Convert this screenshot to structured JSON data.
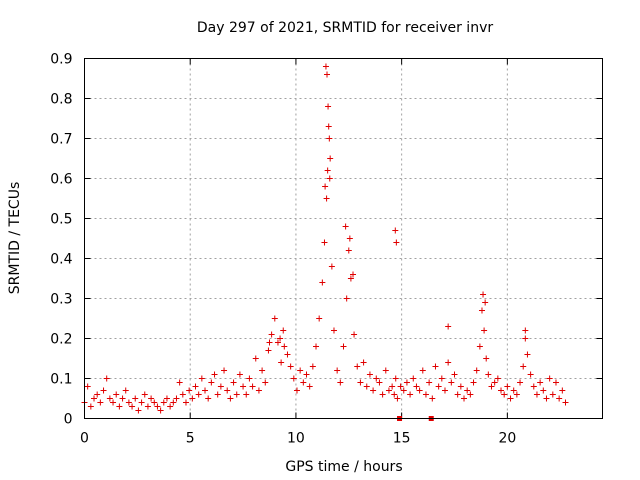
{
  "chart_data": {
    "type": "scatter",
    "title": "Day 297 of 2021, SRMTID for receiver invr",
    "xlabel": "GPS time / hours",
    "ylabel": "SRMTID / TECUs",
    "xlim": [
      0,
      24.5
    ],
    "ylim": [
      0,
      0.9
    ],
    "xticks": [
      0,
      5,
      10,
      15,
      20
    ],
    "xtick_labels": [
      "0",
      "5",
      "10",
      "15",
      "20"
    ],
    "yticks": [
      0,
      0.1,
      0.2,
      0.3,
      0.4,
      0.5,
      0.6,
      0.7,
      0.8,
      0.9
    ],
    "ytick_labels": [
      "0",
      "0.1",
      "0.2",
      "0.3",
      "0.4",
      "0.5",
      "0.6",
      "0.7",
      "0.8",
      "0.9"
    ],
    "grid": true,
    "marker": "plus",
    "color": "#e00000",
    "series": [
      {
        "name": "SRMTID",
        "x": [
          0.0,
          0.15,
          0.3,
          0.45,
          0.6,
          0.75,
          0.9,
          1.05,
          1.2,
          1.35,
          1.5,
          1.65,
          1.8,
          1.95,
          2.1,
          2.25,
          2.4,
          2.55,
          2.7,
          2.85,
          3.0,
          3.15,
          3.3,
          3.45,
          3.6,
          3.75,
          3.9,
          4.05,
          4.2,
          4.35,
          4.5,
          4.65,
          4.8,
          4.95,
          5.1,
          5.25,
          5.4,
          5.55,
          5.7,
          5.85,
          6.0,
          6.15,
          6.3,
          6.45,
          6.6,
          6.75,
          6.9,
          7.05,
          7.2,
          7.35,
          7.5,
          7.65,
          7.8,
          7.95,
          8.1,
          8.25,
          8.4,
          8.55,
          8.7,
          8.85,
          9.0,
          9.15,
          9.3,
          9.45,
          9.6,
          9.75,
          9.9,
          10.05,
          10.2,
          10.35,
          10.5,
          10.65,
          10.8,
          10.95,
          11.1,
          11.25,
          11.35,
          11.45,
          11.5,
          11.55,
          11.6,
          11.7,
          11.8,
          11.95,
          12.1,
          12.25,
          12.4,
          12.5,
          12.6,
          12.75,
          12.9,
          13.05,
          13.2,
          13.35,
          13.5,
          13.65,
          13.8,
          13.95,
          14.1,
          14.25,
          14.4,
          14.55,
          14.65,
          14.72,
          14.8,
          14.95,
          15.1,
          15.25,
          15.4,
          15.55,
          15.7,
          15.85,
          16.0,
          16.15,
          16.3,
          16.45,
          16.6,
          16.75,
          16.9,
          17.05,
          17.2,
          17.35,
          17.5,
          17.65,
          17.8,
          17.95,
          18.1,
          18.25,
          18.4,
          18.55,
          18.7,
          18.8,
          18.9,
          19.0,
          19.1,
          19.25,
          19.4,
          19.55,
          19.7,
          19.85,
          20.0,
          20.15,
          20.3,
          20.45,
          20.6,
          20.75,
          20.85,
          20.95,
          21.1,
          21.25,
          21.4,
          21.55,
          21.7,
          21.85,
          22.0,
          22.15,
          22.3,
          22.45,
          22.6,
          22.75,
          11.42,
          11.47,
          11.52,
          11.58,
          11.62,
          11.38,
          12.35,
          12.55,
          12.7,
          14.7,
          14.75,
          18.85,
          18.95,
          9.4,
          9.25,
          17.2,
          20.85,
          8.75,
          14.9,
          16.4
        ],
        "y": [
          0.04,
          0.08,
          0.03,
          0.05,
          0.06,
          0.04,
          0.07,
          0.1,
          0.05,
          0.04,
          0.06,
          0.03,
          0.05,
          0.07,
          0.04,
          0.03,
          0.05,
          0.02,
          0.04,
          0.06,
          0.03,
          0.05,
          0.04,
          0.03,
          0.02,
          0.04,
          0.05,
          0.03,
          0.04,
          0.05,
          0.09,
          0.06,
          0.04,
          0.07,
          0.05,
          0.08,
          0.06,
          0.1,
          0.07,
          0.05,
          0.09,
          0.11,
          0.06,
          0.08,
          0.12,
          0.07,
          0.05,
          0.09,
          0.06,
          0.11,
          0.08,
          0.06,
          0.1,
          0.08,
          0.15,
          0.07,
          0.12,
          0.09,
          0.17,
          0.21,
          0.25,
          0.19,
          0.14,
          0.18,
          0.16,
          0.13,
          0.1,
          0.07,
          0.12,
          0.09,
          0.11,
          0.08,
          0.13,
          0.18,
          0.25,
          0.34,
          0.44,
          0.55,
          0.62,
          0.73,
          0.6,
          0.38,
          0.22,
          0.12,
          0.09,
          0.18,
          0.3,
          0.42,
          0.35,
          0.21,
          0.13,
          0.09,
          0.14,
          0.08,
          0.11,
          0.07,
          0.1,
          0.09,
          0.06,
          0.12,
          0.07,
          0.08,
          0.06,
          0.1,
          0.05,
          0.08,
          0.07,
          0.09,
          0.06,
          0.1,
          0.08,
          0.07,
          0.12,
          0.06,
          0.09,
          0.05,
          0.13,
          0.08,
          0.1,
          0.07,
          0.14,
          0.09,
          0.11,
          0.06,
          0.08,
          0.05,
          0.07,
          0.06,
          0.09,
          0.12,
          0.18,
          0.27,
          0.22,
          0.15,
          0.11,
          0.08,
          0.09,
          0.1,
          0.07,
          0.06,
          0.08,
          0.05,
          0.07,
          0.06,
          0.09,
          0.13,
          0.2,
          0.16,
          0.11,
          0.08,
          0.06,
          0.09,
          0.07,
          0.05,
          0.1,
          0.06,
          0.09,
          0.05,
          0.07,
          0.04,
          0.88,
          0.86,
          0.78,
          0.7,
          0.65,
          0.58,
          0.48,
          0.45,
          0.36,
          0.47,
          0.44,
          0.31,
          0.29,
          0.22,
          0.2,
          0.23,
          0.22,
          0.19,
          0.0,
          0.0
        ]
      }
    ]
  }
}
